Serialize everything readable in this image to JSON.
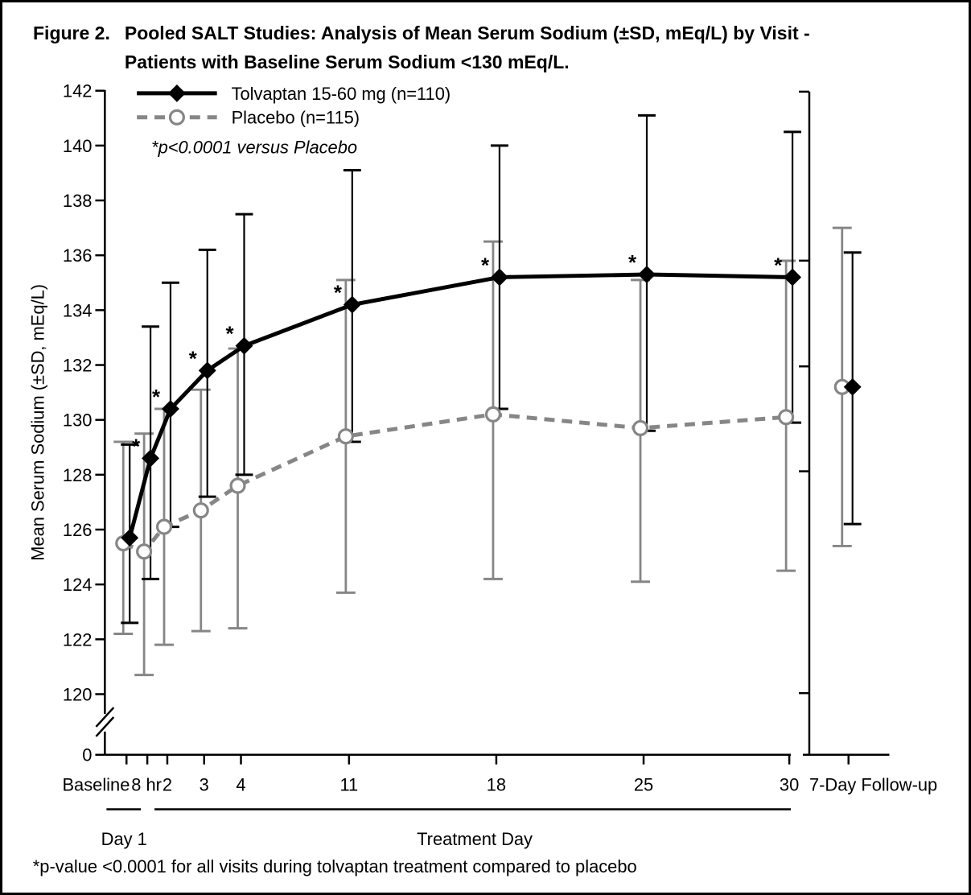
{
  "header": {
    "figure_label": "Figure 2.",
    "title_line1": "Pooled SALT Studies: Analysis of Mean Serum Sodium (±SD, mEq/L) by Visit -",
    "title_line2": "Patients with Baseline Serum Sodium <130 mEq/L."
  },
  "chart_data": {
    "type": "line",
    "title": "Pooled SALT Studies: Analysis of Mean Serum Sodium (±SD, mEq/L) by Visit - Patients with Baseline Serum Sodium <130 mEq/L.",
    "ylabel": "Mean Serum Sodium (±SD, mEq/L)",
    "xlabel": "Treatment Day",
    "x_tick_labels": [
      "Baseline",
      "8 hr",
      "2",
      "3",
      "4",
      "11",
      "18",
      "25",
      "30"
    ],
    "followup_label": "7-Day Follow-up",
    "x_group_labels": {
      "day1": "Day 1",
      "treatment": "Treatment Day"
    },
    "y_ticks": [
      142,
      140,
      138,
      136,
      134,
      132,
      130,
      128,
      126,
      124,
      122,
      120
    ],
    "y_zero_label": "0",
    "y_axis_break": true,
    "ylim": [
      120,
      142
    ],
    "legend_position": "top-left",
    "grid": false,
    "colors": {
      "tolvaptan": "#000000",
      "placebo": "#868686"
    },
    "series": [
      {
        "name": "Tolvaptan 15-60 mg (n=110)",
        "marker": "diamond",
        "line_style": "solid",
        "means": [
          125.7,
          128.6,
          130.4,
          131.8,
          132.7,
          134.2,
          135.2,
          135.3,
          135.2
        ],
        "sd_upper": [
          129.1,
          133.4,
          135.0,
          136.2,
          137.5,
          139.1,
          140.0,
          141.1,
          140.5
        ],
        "sd_lower": [
          122.6,
          124.2,
          126.1,
          127.2,
          128.0,
          129.2,
          130.4,
          129.6,
          129.9
        ],
        "significant": [
          false,
          true,
          true,
          true,
          true,
          true,
          true,
          true,
          true
        ],
        "followup": {
          "mean": 131.2,
          "upper": 136.1,
          "lower": 126.2
        }
      },
      {
        "name": "Placebo (n=115)",
        "marker": "open-circle",
        "line_style": "dashed",
        "means": [
          125.5,
          125.2,
          126.1,
          126.7,
          127.6,
          129.4,
          130.2,
          129.7,
          130.1
        ],
        "sd_upper": [
          129.2,
          129.5,
          130.4,
          131.1,
          132.6,
          135.1,
          136.5,
          135.1,
          135.8
        ],
        "sd_lower": [
          122.2,
          120.7,
          121.8,
          122.3,
          122.4,
          123.7,
          124.2,
          124.1,
          124.5
        ],
        "significant": [
          false,
          false,
          false,
          false,
          false,
          false,
          false,
          false,
          false
        ],
        "followup": {
          "mean": 131.2,
          "upper": 137.0,
          "lower": 125.4
        }
      }
    ],
    "annotations": {
      "sig_note": "*p<0.0001 versus Placebo",
      "footnote": "*p-value <0.0001 for all visits during tolvaptan treatment compared to placebo",
      "asterisk": "*"
    }
  }
}
